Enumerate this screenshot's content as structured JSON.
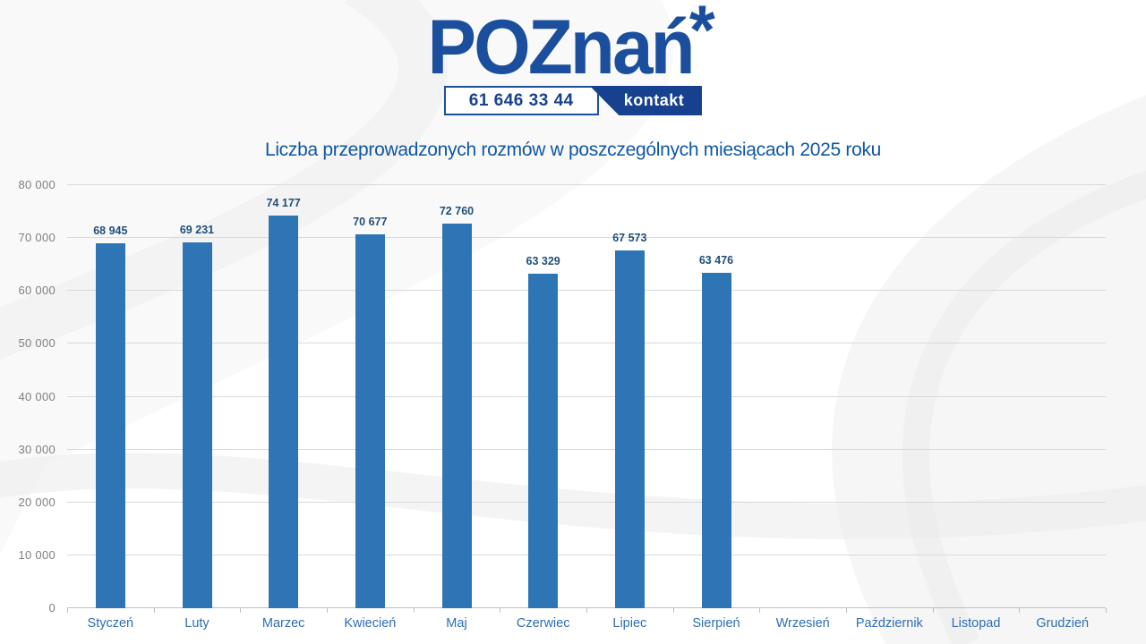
{
  "header": {
    "logo": {
      "text": "POZnań",
      "asterisk": "*"
    },
    "phone": "61 646 33 44",
    "contact_label": "kontakt"
  },
  "chart_data": {
    "type": "bar",
    "title": "Liczba przeprowadzonych rozmów w poszczególnych miesiącach 2025 roku",
    "categories": [
      "Styczeń",
      "Luty",
      "Marzec",
      "Kwiecień",
      "Maj",
      "Czerwiec",
      "Lipiec",
      "Sierpień",
      "Wrzesień",
      "Październik",
      "Listopad",
      "Grudzień"
    ],
    "values": [
      68945,
      69231,
      74177,
      70677,
      72760,
      63329,
      67573,
      63476,
      null,
      null,
      null,
      null
    ],
    "value_labels": [
      "68 945",
      "69 231",
      "74 177",
      "70 677",
      "72 760",
      "63 329",
      "67 573",
      "63 476",
      null,
      null,
      null,
      null
    ],
    "xlabel": "",
    "ylabel": "",
    "ylim": [
      0,
      80000
    ],
    "ytick_step": 10000,
    "ytick_labels": [
      "0",
      "10 000",
      "20 000",
      "30 000",
      "40 000",
      "50 000",
      "60 000",
      "70 000",
      "80 000"
    ],
    "grid": true,
    "legend": false,
    "bar_color": "#2E75B6",
    "value_label_color": "#1F4E79",
    "x_label_color": "#2E6DB4",
    "y_label_color": "#7F7F7F",
    "gridline_color": "#D9D9D9"
  },
  "colors": {
    "logo_blue": "#1B4F9E",
    "contact_badge_bg": "#17418F",
    "title_blue": "#0F56A7"
  }
}
